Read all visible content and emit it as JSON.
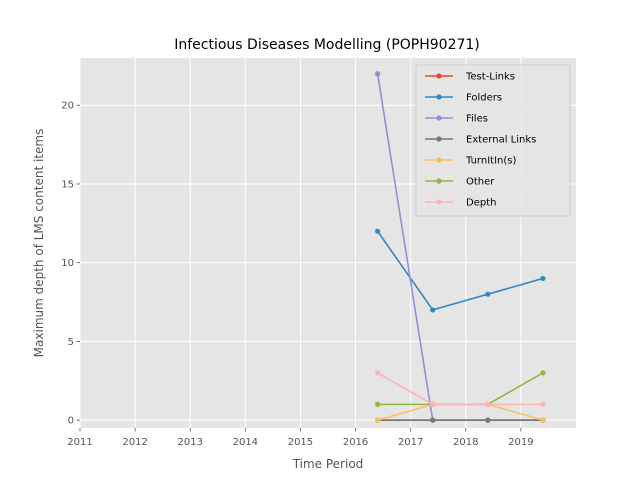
{
  "chart_data": {
    "type": "line",
    "title": "Infectious Diseases Modelling (POPH90271)",
    "xlabel": "Time Period",
    "ylabel": "Maximum depth of LMS content items",
    "xlim": [
      2011,
      2020
    ],
    "ylim": [
      -0.5,
      23
    ],
    "x_ticks": [
      2011,
      2012,
      2013,
      2014,
      2015,
      2016,
      2017,
      2018,
      2019
    ],
    "y_ticks": [
      0,
      5,
      10,
      15,
      20
    ],
    "grid": true,
    "legend_position": "top-right",
    "x": [
      2016.4,
      2017.4,
      2018.4,
      2019.4
    ],
    "series": [
      {
        "name": "Test-Links",
        "color": "#E24A33",
        "values": [
          0,
          0,
          0,
          0
        ]
      },
      {
        "name": "Folders",
        "color": "#348ABD",
        "values": [
          12,
          7,
          8,
          9
        ]
      },
      {
        "name": "Files",
        "color": "#988ED5",
        "values": [
          22,
          0,
          0,
          0
        ]
      },
      {
        "name": "External Links",
        "color": "#777777",
        "values": [
          0,
          0,
          0,
          0
        ]
      },
      {
        "name": "TurnItIn(s)",
        "color": "#FBC15E",
        "values": [
          0,
          1,
          1,
          0
        ]
      },
      {
        "name": "Other",
        "color": "#8EBA42",
        "values": [
          1,
          1,
          1,
          3
        ]
      },
      {
        "name": "Depth",
        "color": "#FFB5B8",
        "values": [
          3,
          1,
          1,
          1
        ]
      }
    ]
  }
}
